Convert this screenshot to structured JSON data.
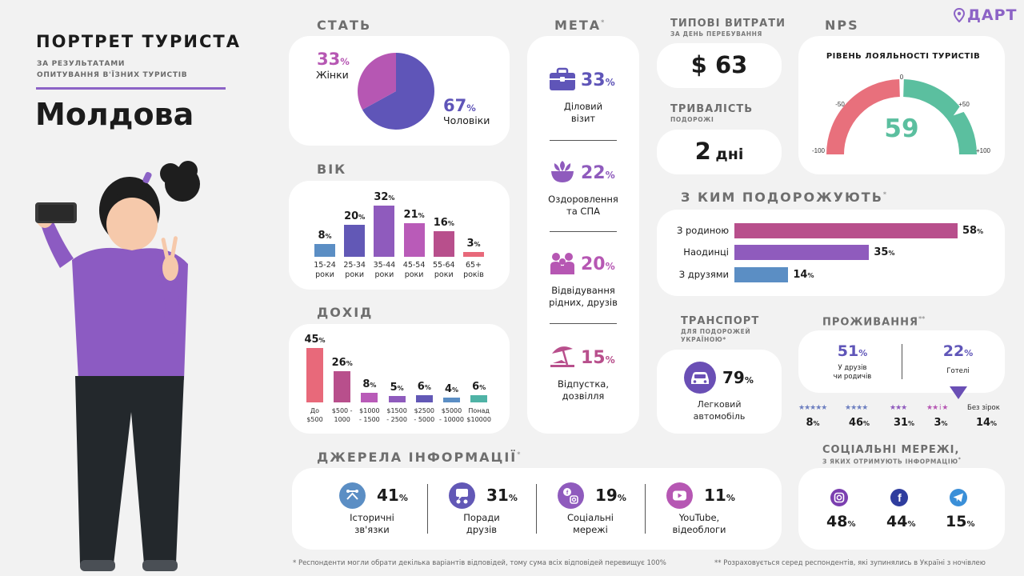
{
  "header": {
    "title": "ПОРТРЕТ ТУРИСТА",
    "subtitle_line1": "ЗА РЕЗУЛЬТАТАМИ",
    "subtitle_line2": "ОПИТУВАННЯ В'ЇЗНИХ ТУРИСТІВ",
    "country": "Молдова",
    "brand": "ДАРТ"
  },
  "gender": {
    "title": "СТАТЬ",
    "women_pct": "33",
    "women_label": "Жінки",
    "men_pct": "67",
    "men_label": "Чоловіки",
    "pct_sign": "%"
  },
  "age": {
    "title": "ВІК",
    "chart_data": {
      "type": "bar",
      "categories": [
        "15-24 роки",
        "25-34 роки",
        "35-44 роки",
        "45-54 роки",
        "55-64 роки",
        "65+ років"
      ],
      "values": [
        8,
        20,
        32,
        21,
        16,
        3
      ],
      "colors": [
        "#5b8ec4",
        "#6258b6",
        "#8f5bbd",
        "#b95bb8",
        "#b84f8c",
        "#e8697a"
      ],
      "ylim": [
        0,
        32
      ]
    },
    "labels_line1": [
      "15-24",
      "25-34",
      "35-44",
      "45-54",
      "55-64",
      "65+"
    ],
    "labels_line2": [
      "роки",
      "роки",
      "роки",
      "роки",
      "роки",
      "років"
    ]
  },
  "income": {
    "title": "ДОХІД",
    "chart_data": {
      "type": "bar",
      "categories": [
        "До $500",
        "$500 - 1000",
        "$1000 - 1500",
        "$1500 - 2500",
        "$2500 - 5000",
        "$5000 - 10000",
        "Понад $10000"
      ],
      "values": [
        45,
        26,
        8,
        5,
        6,
        4,
        6
      ],
      "colors": [
        "#e8697a",
        "#b84f8c",
        "#b95bb8",
        "#8f5bbd",
        "#6258b6",
        "#5b8ec4",
        "#4fb3a6"
      ],
      "ylim": [
        0,
        45
      ]
    },
    "labels_line1": [
      "До",
      "$500 -",
      "$1000",
      "$1500",
      "$2500",
      "$5000",
      "Понад"
    ],
    "labels_line2": [
      "$500",
      "1000",
      "- 1500",
      "- 2500",
      "- 5000",
      "- 10000",
      "$10000"
    ]
  },
  "purpose": {
    "title": "МЕТА",
    "asterisk": "*",
    "items": [
      {
        "icon": "briefcase-icon",
        "pct": "33",
        "color": "#5f55b8",
        "label1": "Діловий",
        "label2": "візит"
      },
      {
        "icon": "spa-icon",
        "pct": "22",
        "color": "#8f5bbd",
        "label1": "Оздоровлення",
        "label2": "та СПА"
      },
      {
        "icon": "family-icon",
        "pct": "20",
        "color": "#b657b3",
        "label1": "Відвідування",
        "label2": "рідних, друзів"
      },
      {
        "icon": "beach-umbrella-icon",
        "pct": "15",
        "color": "#b84f8c",
        "label1": "Відпустка,",
        "label2": "дозвілля"
      }
    ]
  },
  "spending": {
    "title": "ТИПОВІ ВИТРАТИ",
    "subtitle": "ЗА ДЕНЬ ПЕРЕБУВАННЯ",
    "value": "$ 63"
  },
  "duration": {
    "title": "ТРИВАЛІСТЬ",
    "subtitle": "ПОДОРОЖІ",
    "value": "2",
    "unit": "дні"
  },
  "nps": {
    "title": "NPS",
    "card_title": "РІВЕНЬ ЛОЯЛЬНОСТІ ТУРИСТІВ",
    "value": "59",
    "score": 59,
    "ticks": [
      "-100",
      "-50",
      "0",
      "+50",
      "+100"
    ],
    "neg_color": "#e8707c",
    "pos_color": "#5bbf9f"
  },
  "companions": {
    "title": "З КИМ ПОДОРОЖУЮТЬ",
    "asterisk": "*",
    "chart_data": {
      "type": "bar",
      "categories": [
        "З родиною",
        "Наодинці",
        "З друзями"
      ],
      "values": [
        58,
        35,
        14
      ],
      "colors": [
        "#b84f8c",
        "#8f5bbd",
        "#5b8ec4"
      ],
      "xlim": [
        0,
        58
      ]
    }
  },
  "transport": {
    "title": "ТРАНСПОРТ",
    "subtitle_line1": "ДЛЯ ПОДОРОЖЕЙ",
    "subtitle_line2": "УКРАЇНОЮ",
    "asterisk": "*",
    "pct": "79",
    "label1": "Легковий",
    "label2": "автомобіль",
    "icon": "car-icon"
  },
  "accommodation": {
    "title": "ПРОЖИВАННЯ",
    "asterisk": "**",
    "friends_pct": "51",
    "friends_label1": "У друзів",
    "friends_label2": "чи родичів",
    "hotels_pct": "22",
    "hotels_label": "Готелі",
    "stars": [
      {
        "stars": "★★★★★",
        "pct": "8"
      },
      {
        "stars": "★★★★",
        "pct": "46"
      },
      {
        "stars": "★★★",
        "pct": "31"
      },
      {
        "stars": "★★ і ★",
        "pct": "3"
      },
      {
        "stars": "Без зірок",
        "pct": "14"
      }
    ]
  },
  "sources": {
    "title": "ДЖЕРЕЛА ІНФОРМАЦІЇ",
    "asterisk": "*",
    "items": [
      {
        "icon": "history-icon",
        "pct": "41",
        "color": "#5b8ec4",
        "label1": "Історичні",
        "label2": "зв'язки"
      },
      {
        "icon": "advice-icon",
        "pct": "31",
        "color": "#6258b6",
        "label1": "Поради",
        "label2": "друзів"
      },
      {
        "icon": "social-icon",
        "pct": "19",
        "color": "#8f5bbd",
        "label1": "Соціальні",
        "label2": "мережі"
      },
      {
        "icon": "youtube-icon",
        "pct": "11",
        "color": "#b657b3",
        "label1": "YouTube,",
        "label2": "відеоблоги"
      }
    ]
  },
  "social": {
    "title": "СОЦІАЛЬНІ МЕРЕЖІ,",
    "subtitle": "З ЯКИХ ОТРИМУЮТЬ ІНФОРМАЦІЮ",
    "asterisk": "*",
    "items": [
      {
        "icon": "instagram-icon",
        "pct": "48",
        "color": "#7b3fb0"
      },
      {
        "icon": "facebook-icon",
        "pct": "44",
        "color": "#2f3d9e"
      },
      {
        "icon": "telegram-icon",
        "pct": "15",
        "color": "#3a8fd8"
      }
    ]
  },
  "footnotes": {
    "note1": "* Респонденти могли обрати декілька варіантів відповідей, тому сума всіх відповідей перевищує 100%",
    "note2": "** Розраховується серед респондентів, які зупинялись в Україні з ночівлею"
  }
}
